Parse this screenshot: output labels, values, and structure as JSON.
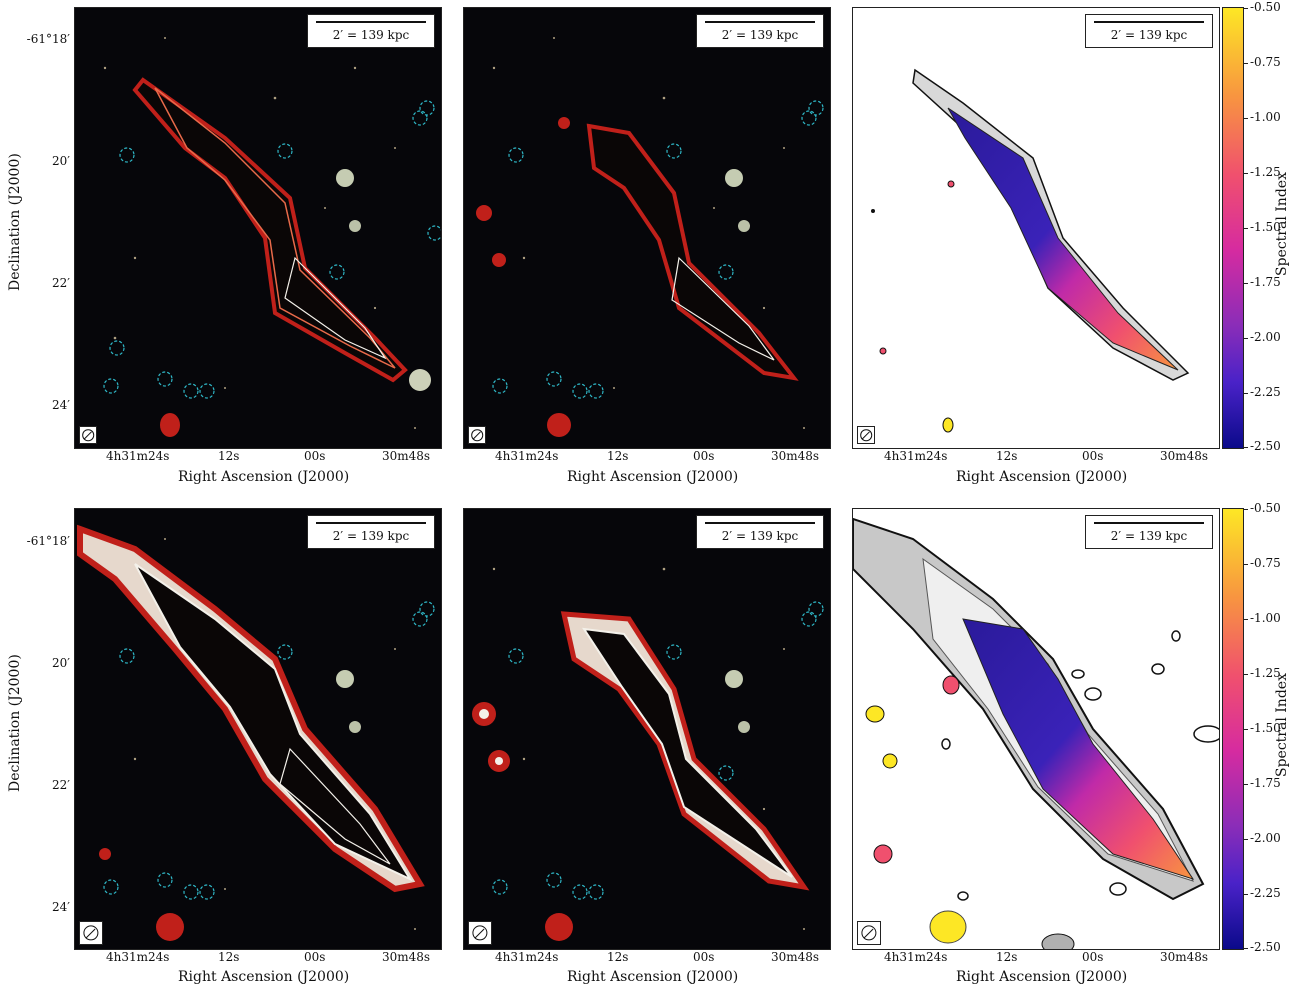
{
  "scale_label": "2′ = 139 kpc",
  "x_axis": {
    "label": "Right Ascension (J2000)",
    "ticks": [
      "4h31m24s",
      "12s",
      "00s",
      "30m48s"
    ]
  },
  "y_axis": {
    "label": "Declination (J2000)",
    "ticks": [
      "-61°18′",
      "20′",
      "22′",
      "24′"
    ]
  },
  "colorbar": {
    "label": "Spectral Index",
    "ticks": [
      "-0.50",
      "-0.75",
      "-1.00",
      "-1.25",
      "-1.50",
      "-1.75",
      "-2.00",
      "-2.25",
      "-2.50"
    ],
    "range": [
      -2.5,
      -0.5
    ]
  },
  "colors": {
    "contour_red": "#c0201a",
    "contour_white": "#f4f1ea",
    "ring_cyan": "#2fb8c8",
    "sky_background": "#06060a"
  }
}
